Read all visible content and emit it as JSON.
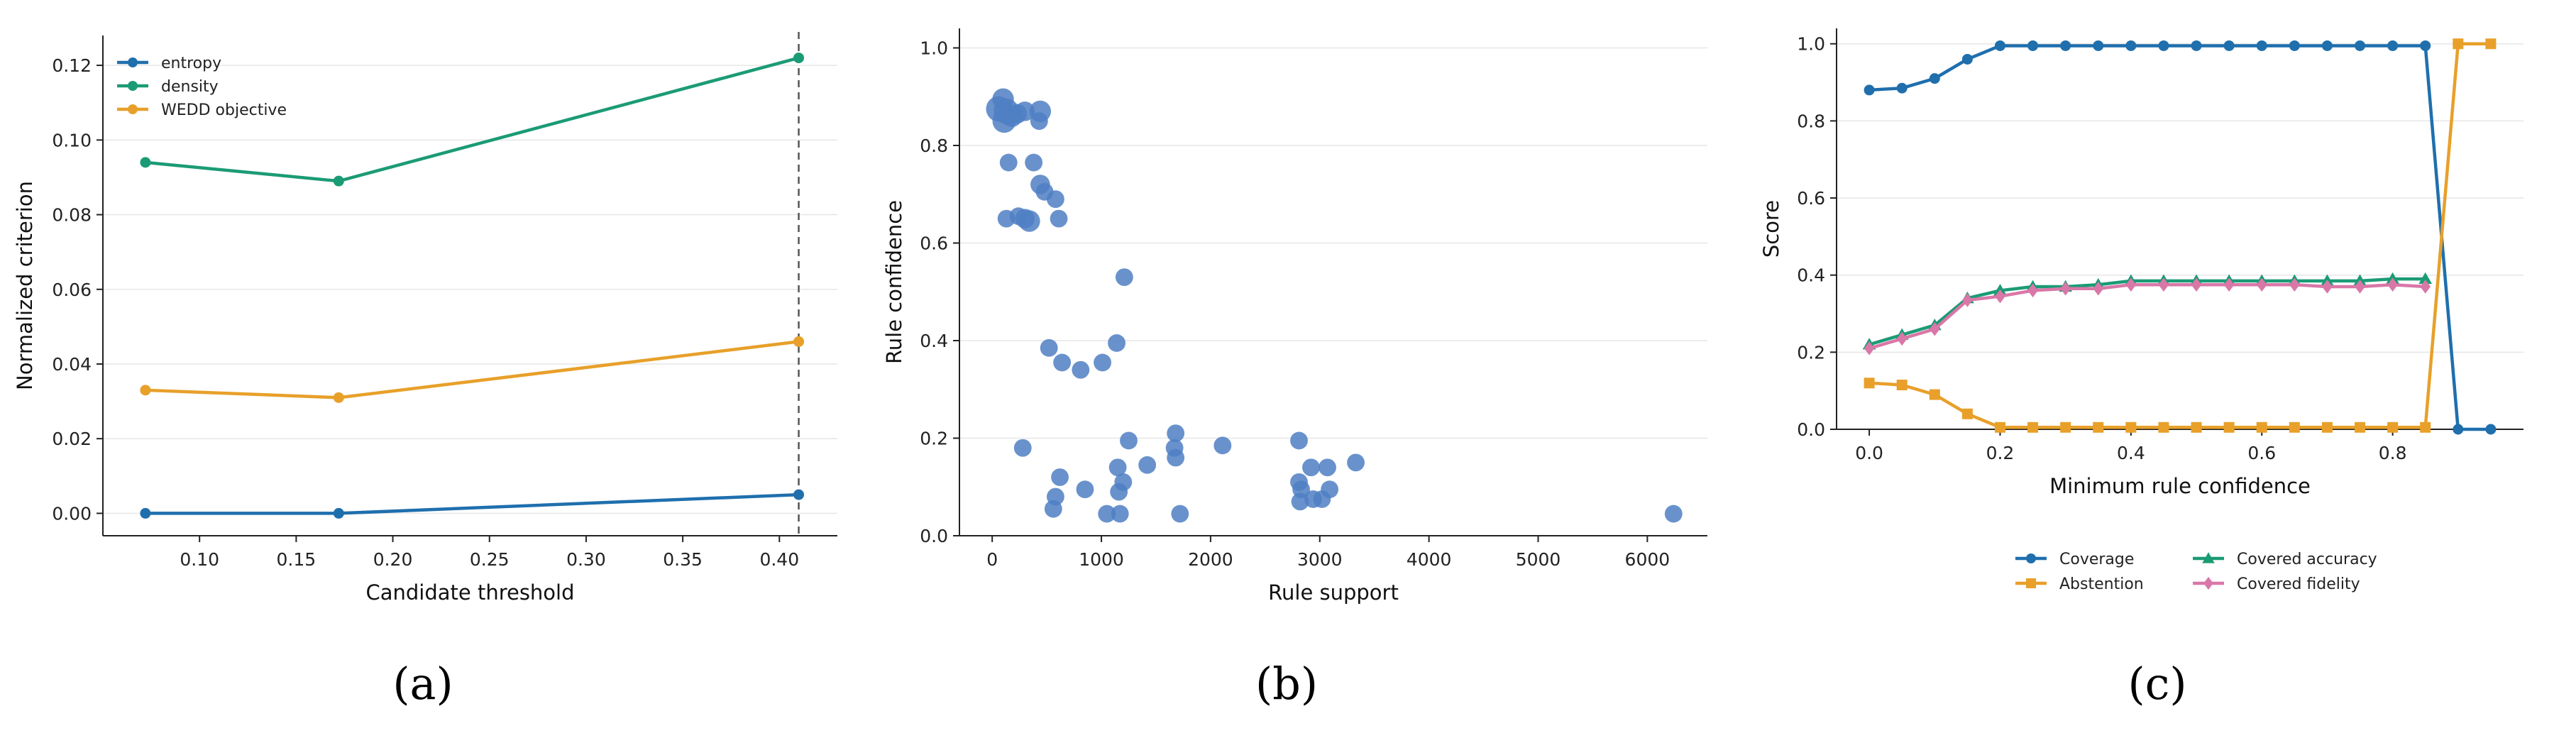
{
  "colors": {
    "blue": "#1f6fad",
    "green": "#1b9b75",
    "orange": "#e8a02a",
    "pink": "#d977a8",
    "scatter": "#4f7fc3",
    "grid": "#e6e6e6",
    "axis": "#222222"
  },
  "chart_data": [
    {
      "id": "a",
      "type": "line",
      "caption": "(a)",
      "xlabel": "Candidate threshold",
      "ylabel": "Normalized criterion",
      "xlim": [
        0.05,
        0.43
      ],
      "ylim": [
        -0.006,
        0.128
      ],
      "xticks": [
        0.1,
        0.15,
        0.2,
        0.25,
        0.3,
        0.35,
        0.4
      ],
      "xtick_labels": [
        "0.10",
        "0.15",
        "0.20",
        "0.25",
        "0.30",
        "0.35",
        "0.40"
      ],
      "yticks": [
        0.0,
        0.02,
        0.04,
        0.06,
        0.08,
        0.1,
        0.12
      ],
      "ytick_labels": [
        "0.00",
        "0.02",
        "0.04",
        "0.06",
        "0.08",
        "0.10",
        "0.12"
      ],
      "grid": "y",
      "legend_position": "top-left",
      "vline": 0.41,
      "x": [
        0.072,
        0.172,
        0.41
      ],
      "series": [
        {
          "name": "entropy",
          "color": "#1f6fad",
          "values": [
            0.0,
            0.0,
            0.005
          ]
        },
        {
          "name": "density",
          "color": "#1b9b75",
          "values": [
            0.094,
            0.089,
            0.122
          ]
        },
        {
          "name": "WEDD objective",
          "color": "#e8a02a",
          "values": [
            0.033,
            0.031,
            0.046
          ]
        }
      ]
    },
    {
      "id": "b",
      "type": "scatter",
      "caption": "(b)",
      "xlabel": "Rule support",
      "ylabel": "Rule confidence",
      "xlim": [
        -300,
        6550
      ],
      "ylim": [
        0.0,
        1.04
      ],
      "xticks": [
        0,
        1000,
        2000,
        3000,
        4000,
        5000,
        6000
      ],
      "xtick_labels": [
        "0",
        "1000",
        "2000",
        "3000",
        "4000",
        "5000",
        "6000"
      ],
      "yticks": [
        0.0,
        0.2,
        0.4,
        0.6,
        0.8,
        1.0
      ],
      "ytick_labels": [
        "0.0",
        "0.2",
        "0.4",
        "0.6",
        "0.8",
        "1.0"
      ],
      "grid": "y",
      "color": "#4f7fc3",
      "points": [
        {
          "x": 60,
          "y": 0.875,
          "s": 13
        },
        {
          "x": 100,
          "y": 0.895,
          "s": 11
        },
        {
          "x": 130,
          "y": 0.87,
          "s": 13
        },
        {
          "x": 110,
          "y": 0.85,
          "s": 12
        },
        {
          "x": 180,
          "y": 0.86,
          "s": 11
        },
        {
          "x": 230,
          "y": 0.865,
          "s": 10
        },
        {
          "x": 300,
          "y": 0.87,
          "s": 10
        },
        {
          "x": 440,
          "y": 0.87,
          "s": 11
        },
        {
          "x": 430,
          "y": 0.85,
          "s": 9
        },
        {
          "x": 150,
          "y": 0.765,
          "s": 9
        },
        {
          "x": 380,
          "y": 0.765,
          "s": 9
        },
        {
          "x": 440,
          "y": 0.72,
          "s": 10
        },
        {
          "x": 480,
          "y": 0.705,
          "s": 9
        },
        {
          "x": 580,
          "y": 0.69,
          "s": 9
        },
        {
          "x": 130,
          "y": 0.65,
          "s": 9
        },
        {
          "x": 240,
          "y": 0.655,
          "s": 9
        },
        {
          "x": 300,
          "y": 0.65,
          "s": 10
        },
        {
          "x": 340,
          "y": 0.645,
          "s": 11
        },
        {
          "x": 610,
          "y": 0.65,
          "s": 9
        },
        {
          "x": 1210,
          "y": 0.53,
          "s": 9
        },
        {
          "x": 520,
          "y": 0.385,
          "s": 9
        },
        {
          "x": 1140,
          "y": 0.395,
          "s": 9
        },
        {
          "x": 1010,
          "y": 0.355,
          "s": 9
        },
        {
          "x": 640,
          "y": 0.355,
          "s": 9
        },
        {
          "x": 810,
          "y": 0.34,
          "s": 9
        },
        {
          "x": 280,
          "y": 0.18,
          "s": 9
        },
        {
          "x": 620,
          "y": 0.12,
          "s": 9
        },
        {
          "x": 580,
          "y": 0.08,
          "s": 9
        },
        {
          "x": 560,
          "y": 0.055,
          "s": 9
        },
        {
          "x": 850,
          "y": 0.095,
          "s": 9
        },
        {
          "x": 1050,
          "y": 0.045,
          "s": 9
        },
        {
          "x": 1150,
          "y": 0.14,
          "s": 9
        },
        {
          "x": 1160,
          "y": 0.09,
          "s": 9
        },
        {
          "x": 1200,
          "y": 0.11,
          "s": 9
        },
        {
          "x": 1170,
          "y": 0.045,
          "s": 9
        },
        {
          "x": 1250,
          "y": 0.195,
          "s": 9
        },
        {
          "x": 1420,
          "y": 0.145,
          "s": 9
        },
        {
          "x": 1680,
          "y": 0.21,
          "s": 9
        },
        {
          "x": 1670,
          "y": 0.18,
          "s": 9
        },
        {
          "x": 1680,
          "y": 0.16,
          "s": 9
        },
        {
          "x": 1720,
          "y": 0.045,
          "s": 9
        },
        {
          "x": 2110,
          "y": 0.185,
          "s": 9
        },
        {
          "x": 2810,
          "y": 0.195,
          "s": 9
        },
        {
          "x": 2810,
          "y": 0.11,
          "s": 9
        },
        {
          "x": 2830,
          "y": 0.095,
          "s": 9
        },
        {
          "x": 2820,
          "y": 0.07,
          "s": 9
        },
        {
          "x": 2920,
          "y": 0.14,
          "s": 9
        },
        {
          "x": 2940,
          "y": 0.075,
          "s": 9
        },
        {
          "x": 3020,
          "y": 0.075,
          "s": 9
        },
        {
          "x": 3070,
          "y": 0.14,
          "s": 9
        },
        {
          "x": 3090,
          "y": 0.095,
          "s": 9
        },
        {
          "x": 3330,
          "y": 0.15,
          "s": 9
        },
        {
          "x": 6240,
          "y": 0.045,
          "s": 9
        }
      ]
    },
    {
      "id": "c",
      "type": "line",
      "caption": "(c)",
      "xlabel": "Minimum rule confidence",
      "ylabel": "Score",
      "xlim": [
        -0.05,
        1.0
      ],
      "ylim": [
        0.0,
        1.04
      ],
      "xticks": [
        0.0,
        0.2,
        0.4,
        0.6,
        0.8
      ],
      "xtick_labels": [
        "0.0",
        "0.2",
        "0.4",
        "0.6",
        "0.8"
      ],
      "yticks": [
        0.0,
        0.2,
        0.4,
        0.6,
        0.8,
        1.0
      ],
      "ytick_labels": [
        "0.0",
        "0.2",
        "0.4",
        "0.6",
        "0.8",
        "1.0"
      ],
      "grid": "y",
      "legend_position": "below",
      "x": [
        0.0,
        0.05,
        0.1,
        0.15,
        0.2,
        0.25,
        0.3,
        0.35,
        0.4,
        0.45,
        0.5,
        0.55,
        0.6,
        0.65,
        0.7,
        0.75,
        0.8,
        0.85,
        0.9,
        0.95
      ],
      "series": [
        {
          "name": "Coverage",
          "color": "#1f6fad",
          "marker": "circle",
          "values": [
            0.88,
            0.885,
            0.91,
            0.96,
            0.995,
            0.995,
            0.995,
            0.995,
            0.995,
            0.995,
            0.995,
            0.995,
            0.995,
            0.995,
            0.995,
            0.995,
            0.995,
            0.995,
            0.0,
            0.0
          ]
        },
        {
          "name": "Abstention",
          "color": "#e8a02a",
          "marker": "square",
          "values": [
            0.12,
            0.115,
            0.09,
            0.04,
            0.005,
            0.005,
            0.005,
            0.005,
            0.005,
            0.005,
            0.005,
            0.005,
            0.005,
            0.005,
            0.005,
            0.005,
            0.005,
            0.005,
            1.0,
            1.0
          ]
        },
        {
          "name": "Covered accuracy",
          "color": "#1b9b75",
          "marker": "triangle",
          "values": [
            0.22,
            0.245,
            0.27,
            0.34,
            0.36,
            0.37,
            0.37,
            0.375,
            0.385,
            0.385,
            0.385,
            0.385,
            0.385,
            0.385,
            0.385,
            0.385,
            0.39,
            0.39,
            null,
            null
          ]
        },
        {
          "name": "Covered fidelity",
          "color": "#d977a8",
          "marker": "diamond",
          "values": [
            0.21,
            0.235,
            0.26,
            0.335,
            0.345,
            0.36,
            0.365,
            0.365,
            0.375,
            0.375,
            0.375,
            0.375,
            0.375,
            0.375,
            0.37,
            0.37,
            0.375,
            0.37,
            null,
            null
          ]
        }
      ]
    }
  ]
}
